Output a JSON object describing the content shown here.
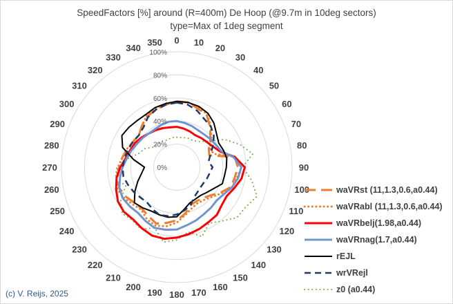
{
  "chart_data": {
    "type": "radar",
    "title": "SpeedFactors [%] around (R=400m) De Hoop (@9.7m in 10deg sectors)",
    "subtitle": "type=Max of 1deg segment",
    "angle_labels": [
      "0",
      "10",
      "20",
      "30",
      "40",
      "50",
      "60",
      "70",
      "80",
      "90",
      "100",
      "110",
      "120",
      "130",
      "140",
      "150",
      "160",
      "170",
      "180",
      "190",
      "200",
      "210",
      "220",
      "230",
      "240",
      "250",
      "260",
      "270",
      "280",
      "290",
      "300",
      "310",
      "320",
      "330",
      "340",
      "350"
    ],
    "radial_ticks": [
      "0%",
      "20%",
      "40%",
      "60%",
      "80%",
      "100%"
    ],
    "rmax": 100,
    "legend_position": "right",
    "series": [
      {
        "name": "waVRst (11,1.3,0.6,a0.44)",
        "color": "#ed7d31",
        "dash": "long-dash",
        "width": 3,
        "values": [
          57,
          57,
          54,
          52,
          45,
          38,
          32,
          30,
          51,
          53,
          51,
          50,
          44,
          38,
          35,
          34,
          35,
          41,
          46,
          49,
          52,
          49,
          47,
          48,
          51,
          53,
          52,
          50,
          48,
          46,
          44,
          43,
          47,
          51,
          53,
          55
        ]
      },
      {
        "name": "waVRabl (11,1.3,0.6,a0.44)",
        "color": "#ed7d31",
        "dash": "dot",
        "width": 3,
        "values": [
          57,
          57,
          55,
          53,
          46,
          39,
          33,
          34,
          52,
          56,
          53,
          51,
          45,
          40,
          37,
          36,
          38,
          42,
          48,
          52,
          54,
          52,
          48,
          50,
          53,
          55,
          53,
          51,
          48,
          46,
          44,
          43,
          47,
          52,
          54,
          56
        ]
      },
      {
        "name": "waVRbelj(1.98,a0.44)",
        "color": "#ff0000",
        "dash": "solid",
        "width": 3,
        "values": [
          35,
          34,
          33,
          32,
          33,
          34,
          36,
          40,
          51,
          59,
          57,
          53,
          50,
          51,
          54,
          55,
          57,
          59,
          61,
          63,
          63,
          61,
          59,
          60,
          59,
          56,
          53,
          49,
          45,
          43,
          42,
          40,
          38,
          37,
          36,
          35
        ]
      },
      {
        "name": "waVRnag(1.7,a0.44)",
        "color": "#6f94d0",
        "dash": "solid",
        "width": 3,
        "values": [
          40,
          39,
          38,
          37,
          37,
          38,
          39,
          41,
          50,
          56,
          54,
          51,
          47,
          45,
          46,
          47,
          49,
          51,
          54,
          55,
          56,
          54,
          52,
          53,
          54,
          53,
          50,
          47,
          44,
          42,
          40,
          39,
          38,
          38,
          39,
          40
        ]
      },
      {
        "name": "rEJL",
        "color": "#000000",
        "dash": "solid",
        "width": 2,
        "values": [
          57,
          57,
          56,
          54,
          50,
          45,
          42,
          43,
          44,
          43,
          42,
          42,
          37,
          34,
          32,
          32,
          33,
          37,
          43,
          44,
          44,
          44,
          46,
          48,
          42,
          36,
          31,
          28,
          38,
          50,
          55,
          54,
          53,
          53,
          55,
          56
        ]
      },
      {
        "name": "wrVRejl",
        "color": "#1f3864",
        "dash": "dash",
        "width": 2.5,
        "values": [
          56,
          55,
          52,
          48,
          46,
          42,
          36,
          31,
          28,
          31,
          29,
          28,
          27,
          27,
          28,
          30,
          35,
          38,
          41,
          43,
          44,
          42,
          40,
          41,
          43,
          45,
          47,
          47,
          46,
          45,
          44,
          43,
          45,
          50,
          53,
          55
        ]
      },
      {
        "name": "z0 (a0.44)",
        "color": "#70ad47",
        "dash": "dot",
        "width": 2,
        "values": [
          26,
          26,
          27,
          27,
          29,
          35,
          48,
          58,
          67,
          57,
          66,
          74,
          69,
          68,
          61,
          56,
          64,
          57,
          63,
          66,
          56,
          62,
          60,
          62,
          56,
          47,
          54,
          52,
          43,
          35,
          32,
          27,
          26,
          26,
          25,
          26
        ]
      }
    ]
  },
  "copyright": "(c) V. Reijs, 2025"
}
